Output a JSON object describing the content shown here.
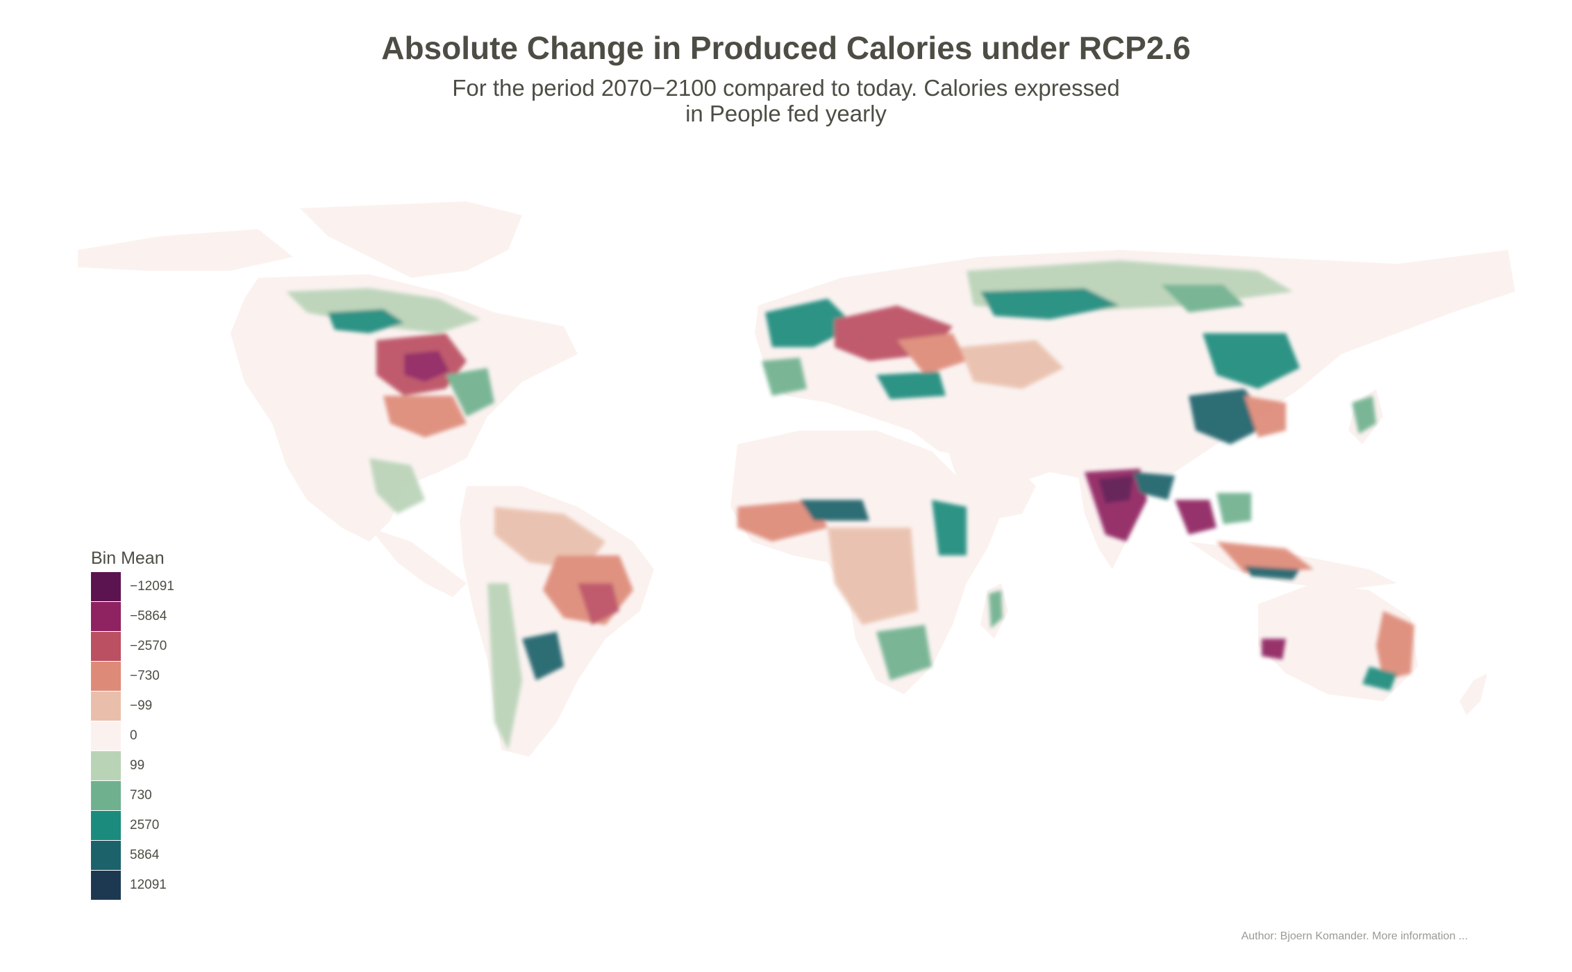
{
  "title": "Absolute Change in Produced Calories under RCP2.6",
  "subtitle_line1": "For the period 2070−2100 compared to today. Calories expressed",
  "subtitle_line2": "in People fed yearly",
  "legend": {
    "title": "Bin Mean",
    "items": [
      {
        "label": "−12091",
        "color": "#5c1450"
      },
      {
        "label": "−5864",
        "color": "#8f2260"
      },
      {
        "label": "−2570",
        "color": "#bb5062"
      },
      {
        "label": "−730",
        "color": "#de8a78"
      },
      {
        "label": "−99",
        "color": "#e9bfac"
      },
      {
        "label": "0",
        "color": "#fbf2f0"
      },
      {
        "label": "99",
        "color": "#b9d3b7"
      },
      {
        "label": "730",
        "color": "#6fb18f"
      },
      {
        "label": "2570",
        "color": "#1b8b7d"
      },
      {
        "label": "5864",
        "color": "#1b626b"
      },
      {
        "label": "12091",
        "color": "#1d3952"
      }
    ]
  },
  "caption": "Author: Bjoern Komander. More information ..."
}
